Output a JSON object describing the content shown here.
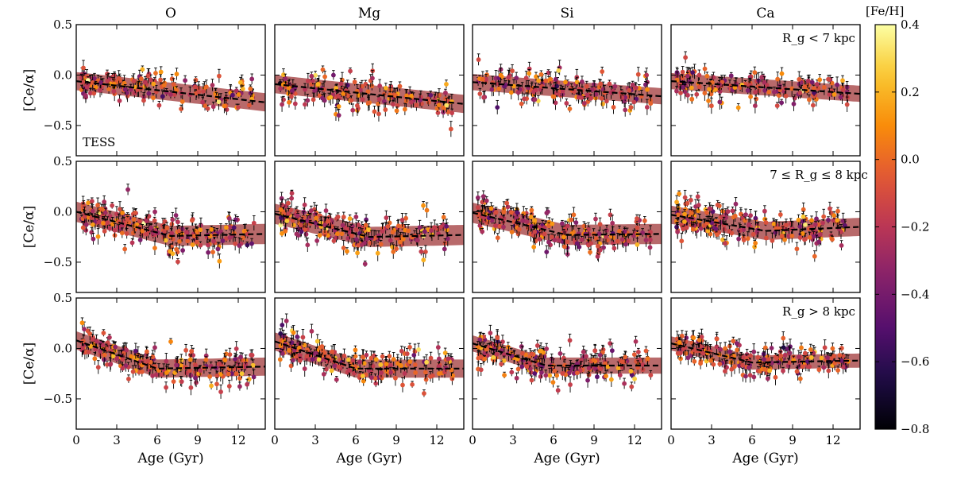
{
  "chart_data": {
    "type": "scatter",
    "columns": [
      "O",
      "Mg",
      "Si",
      "Ca"
    ],
    "ylabel": "[Ce/α]",
    "xlabel": "Age (Gyr)",
    "xlim": [
      0,
      14
    ],
    "ylim": [
      -0.8,
      0.5
    ],
    "xticks": [
      0,
      3,
      6,
      9,
      12
    ],
    "yticks": [
      0.5,
      0.0,
      -0.5
    ],
    "xtick_labels": [
      "0",
      "3",
      "6",
      "9",
      "12"
    ],
    "ytick_labels": [
      "0.5",
      "0.0",
      "−0.5"
    ],
    "rows": [
      {
        "annotation": "R_g < 7 kpc",
        "corner_label": "TESS",
        "n_points": 150,
        "seed": 11,
        "fits": [
          {
            "knee": null,
            "y0": -0.06,
            "slope": -0.015,
            "band": 0.09,
            "scatter": 0.09
          },
          {
            "knee": null,
            "y0": -0.09,
            "slope": -0.014,
            "band": 0.09,
            "scatter": 0.09
          },
          {
            "knee": null,
            "y0": -0.07,
            "slope": -0.01,
            "band": 0.08,
            "scatter": 0.09
          },
          {
            "knee": null,
            "y0": -0.06,
            "slope": -0.009,
            "band": 0.08,
            "scatter": 0.09
          }
        ]
      },
      {
        "annotation": "7 ≤ R_g ≤ 8 kpc",
        "corner_label": "",
        "n_points": 200,
        "seed": 23,
        "fits": [
          {
            "knee": 7,
            "y0": 0.0,
            "y_knee": -0.24,
            "y_end": -0.22,
            "band": 0.1,
            "scatter": 0.1
          },
          {
            "knee": 7,
            "y0": -0.02,
            "y_knee": -0.25,
            "y_end": -0.23,
            "band": 0.1,
            "scatter": 0.1
          },
          {
            "knee": 7,
            "y0": -0.01,
            "y_knee": -0.23,
            "y_end": -0.22,
            "band": 0.1,
            "scatter": 0.1
          },
          {
            "knee": 7,
            "y0": -0.03,
            "y_knee": -0.19,
            "y_end": -0.15,
            "band": 0.09,
            "scatter": 0.09
          }
        ]
      },
      {
        "annotation": "R_g > 8 kpc",
        "corner_label": "",
        "n_points": 190,
        "seed": 37,
        "fits": [
          {
            "knee": 6,
            "y0": 0.08,
            "y_knee": -0.2,
            "y_end": -0.18,
            "band": 0.09,
            "scatter": 0.09
          },
          {
            "knee": 6,
            "y0": 0.07,
            "y_knee": -0.2,
            "y_end": -0.2,
            "band": 0.09,
            "scatter": 0.09
          },
          {
            "knee": 5.5,
            "y0": 0.05,
            "y_knee": -0.17,
            "y_end": -0.17,
            "band": 0.08,
            "scatter": 0.09
          },
          {
            "knee": 6,
            "y0": 0.05,
            "y_knee": -0.14,
            "y_end": -0.12,
            "band": 0.07,
            "scatter": 0.08
          }
        ]
      }
    ],
    "colorbar": {
      "label": "[Fe/H]",
      "range": [
        -0.8,
        0.4
      ],
      "ticks": [
        0.4,
        0.2,
        0.0,
        -0.2,
        -0.4,
        -0.6,
        -0.8
      ],
      "tick_labels": [
        "0.4",
        "0.2",
        "0.0",
        "−0.2",
        "−0.4",
        "−0.6",
        "−0.8"
      ],
      "colormap": "inferno"
    },
    "colors": {
      "band": "#a0383a",
      "fit_line": "#000000",
      "errorbar": "#000000"
    }
  }
}
